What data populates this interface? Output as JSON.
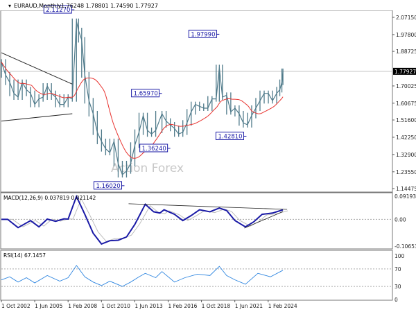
{
  "header": {
    "symbol": "EURAUD,Monthly",
    "ohlc": "1.76248 1.78801 1.74590 1.77927"
  },
  "watermark": "Action Forex",
  "colors": {
    "price": "#4f7a8a",
    "ma": "#e8322e",
    "macd": "#1a1aa6",
    "signal": "#bdbdbd",
    "rsi": "#2f86e0",
    "label_border": "#1a1aa6",
    "current_bg": "#000000"
  },
  "chart_data": [
    {
      "type": "line",
      "title": "EURAUD,Monthly",
      "ylim": [
        1.14475,
        2.0715
      ],
      "y_ticks": [
        "2.07150",
        "1.97800",
        "1.88725",
        "1.70025",
        "1.60675",
        "1.51600",
        "1.42250",
        "1.32900",
        "1.23550",
        "1.14475"
      ],
      "x_ticks": [
        "1 Oct 2002",
        "1 Jun 2005",
        "1 Feb 2008",
        "1 Oct 2010",
        "1 Jun 2013",
        "1 Feb 2016",
        "1 Oct 2018",
        "1 Jun 2021",
        "1 Feb 2024"
      ],
      "current_price": "1.77927",
      "series": [
        {
          "x": "2002-10",
          "y": 1.83
        },
        {
          "x": "2003-02",
          "y": 1.76
        },
        {
          "x": "2003-06",
          "y": 1.72
        },
        {
          "x": "2003-10",
          "y": 1.66
        },
        {
          "x": "2004-02",
          "y": 1.64
        },
        {
          "x": "2004-06",
          "y": 1.72
        },
        {
          "x": "2004-10",
          "y": 1.68
        },
        {
          "x": "2005-02",
          "y": 1.66
        },
        {
          "x": "2005-06",
          "y": 1.6
        },
        {
          "x": "2005-10",
          "y": 1.63
        },
        {
          "x": "2006-02",
          "y": 1.64
        },
        {
          "x": "2006-06",
          "y": 1.7
        },
        {
          "x": "2006-10",
          "y": 1.66
        },
        {
          "x": "2007-02",
          "y": 1.64
        },
        {
          "x": "2007-06",
          "y": 1.6
        },
        {
          "x": "2007-10",
          "y": 1.6
        },
        {
          "x": "2008-02",
          "y": 1.64
        },
        {
          "x": "2008-06",
          "y": 1.63
        },
        {
          "x": "2008-10",
          "y": 2.05
        },
        {
          "x": "2008-12",
          "y": 2.0
        },
        {
          "x": "2009-03",
          "y": 1.95
        },
        {
          "x": "2009-06",
          "y": 1.76
        },
        {
          "x": "2009-10",
          "y": 1.62
        },
        {
          "x": "2010-02",
          "y": 1.55
        },
        {
          "x": "2010-06",
          "y": 1.45
        },
        {
          "x": "2010-10",
          "y": 1.4
        },
        {
          "x": "2011-02",
          "y": 1.36
        },
        {
          "x": "2011-06",
          "y": 1.34
        },
        {
          "x": "2011-10",
          "y": 1.4
        },
        {
          "x": "2012-02",
          "y": 1.28
        },
        {
          "x": "2012-06",
          "y": 1.22
        },
        {
          "x": "2012-10",
          "y": 1.24
        },
        {
          "x": "2013-02",
          "y": 1.28
        },
        {
          "x": "2013-06",
          "y": 1.38
        },
        {
          "x": "2013-10",
          "y": 1.45
        },
        {
          "x": "2014-02",
          "y": 1.54
        },
        {
          "x": "2014-06",
          "y": 1.46
        },
        {
          "x": "2014-10",
          "y": 1.44
        },
        {
          "x": "2015-02",
          "y": 1.46
        },
        {
          "x": "2015-08",
          "y": 1.55
        },
        {
          "x": "2015-12",
          "y": 1.51
        },
        {
          "x": "2016-04",
          "y": 1.49
        },
        {
          "x": "2016-08",
          "y": 1.47
        },
        {
          "x": "2016-12",
          "y": 1.44
        },
        {
          "x": "2017-04",
          "y": 1.45
        },
        {
          "x": "2017-08",
          "y": 1.5
        },
        {
          "x": "2017-12",
          "y": 1.56
        },
        {
          "x": "2018-04",
          "y": 1.6
        },
        {
          "x": "2018-08",
          "y": 1.59
        },
        {
          "x": "2018-12",
          "y": 1.58
        },
        {
          "x": "2019-04",
          "y": 1.58
        },
        {
          "x": "2019-08",
          "y": 1.63
        },
        {
          "x": "2019-12",
          "y": 1.63
        },
        {
          "x": "2020-03",
          "y": 1.8
        },
        {
          "x": "2020-06",
          "y": 1.64
        },
        {
          "x": "2020-10",
          "y": 1.65
        },
        {
          "x": "2021-02",
          "y": 1.56
        },
        {
          "x": "2021-06",
          "y": 1.58
        },
        {
          "x": "2021-10",
          "y": 1.55
        },
        {
          "x": "2022-02",
          "y": 1.5
        },
        {
          "x": "2022-06",
          "y": 1.49
        },
        {
          "x": "2022-10",
          "y": 1.54
        },
        {
          "x": "2023-02",
          "y": 1.58
        },
        {
          "x": "2023-06",
          "y": 1.62
        },
        {
          "x": "2023-10",
          "y": 1.66
        },
        {
          "x": "2024-02",
          "y": 1.66
        },
        {
          "x": "2024-06",
          "y": 1.62
        },
        {
          "x": "2024-10",
          "y": 1.66
        },
        {
          "x": "2025-01",
          "y": 1.68
        },
        {
          "x": "2025-03",
          "y": 1.72
        },
        {
          "x": "2025-04",
          "y": 1.77927
        }
      ],
      "annotations": [
        {
          "text": "2.11270",
          "x": "2008-08",
          "y": 2.1127
        },
        {
          "text": "1.16020",
          "x": "2012-08",
          "y": 1.1602
        },
        {
          "text": "1.65970",
          "x": "2015-08",
          "y": 1.6597
        },
        {
          "text": "1.36240",
          "x": "2016-04",
          "y": 1.3624
        },
        {
          "text": "1.97990",
          "x": "2020-03",
          "y": 1.9799
        },
        {
          "text": "1.42810",
          "x": "2022-05",
          "y": 1.4281
        }
      ],
      "trendlines": [
        {
          "x1": "2002-10",
          "y1": 1.88,
          "x2": "2008-06",
          "y2": 1.71
        },
        {
          "x1": "2002-10",
          "y1": 1.51,
          "x2": "2008-06",
          "y2": 1.55
        }
      ]
    },
    {
      "type": "line",
      "title": "MACD(12,26,9) 0.037819 0.021142",
      "ylim": [
        -0.106534,
        0.091935
      ],
      "y_ticks": [
        "0.091935",
        "0.00",
        "-0.106534"
      ],
      "macd": [
        {
          "x": "2002-10",
          "y": 0.0
        },
        {
          "x": "2003-04",
          "y": 0.0
        },
        {
          "x": "2004-02",
          "y": -0.033
        },
        {
          "x": "2005-02",
          "y": -0.005
        },
        {
          "x": "2005-10",
          "y": -0.03
        },
        {
          "x": "2006-06",
          "y": 0.001
        },
        {
          "x": "2007-02",
          "y": -0.008
        },
        {
          "x": "2007-10",
          "y": 0.002
        },
        {
          "x": "2008-02",
          "y": 0.001
        },
        {
          "x": "2008-10",
          "y": 0.091
        },
        {
          "x": "2009-06",
          "y": 0.02
        },
        {
          "x": "2010-02",
          "y": -0.055
        },
        {
          "x": "2010-10",
          "y": -0.098
        },
        {
          "x": "2011-06",
          "y": -0.085
        },
        {
          "x": "2012-02",
          "y": -0.083
        },
        {
          "x": "2012-10",
          "y": -0.07
        },
        {
          "x": "2013-06",
          "y": -0.02
        },
        {
          "x": "2014-04",
          "y": 0.06
        },
        {
          "x": "2014-12",
          "y": 0.03
        },
        {
          "x": "2015-06",
          "y": 0.025
        },
        {
          "x": "2015-10",
          "y": 0.038
        },
        {
          "x": "2016-08",
          "y": 0.02
        },
        {
          "x": "2017-04",
          "y": -0.005
        },
        {
          "x": "2017-12",
          "y": 0.015
        },
        {
          "x": "2018-08",
          "y": 0.038
        },
        {
          "x": "2019-06",
          "y": 0.03
        },
        {
          "x": "2020-03",
          "y": 0.045
        },
        {
          "x": "2020-10",
          "y": 0.035
        },
        {
          "x": "2021-06",
          "y": -0.005
        },
        {
          "x": "2022-04",
          "y": -0.03
        },
        {
          "x": "2022-12",
          "y": -0.01
        },
        {
          "x": "2023-08",
          "y": 0.02
        },
        {
          "x": "2024-06",
          "y": 0.025
        },
        {
          "x": "2025-04",
          "y": 0.0378
        }
      ],
      "trendlines": [
        {
          "x1": "2012-12",
          "y1": 0.062,
          "x2": "2025-08",
          "y2": 0.0396
        },
        {
          "x1": "2022-03",
          "y1": -0.035,
          "x2": "2025-04",
          "y2": 0.031
        }
      ]
    },
    {
      "type": "line",
      "title": "RSI(14) 67.1457",
      "ylim": [
        0,
        100
      ],
      "y_ticks": [
        "100",
        "70",
        "30",
        "0"
      ],
      "values": [
        {
          "x": "2002-10",
          "y": 45
        },
        {
          "x": "2003-06",
          "y": 52
        },
        {
          "x": "2004-02",
          "y": 40
        },
        {
          "x": "2004-10",
          "y": 50
        },
        {
          "x": "2005-06",
          "y": 38
        },
        {
          "x": "2006-06",
          "y": 55
        },
        {
          "x": "2007-06",
          "y": 42
        },
        {
          "x": "2008-02",
          "y": 50
        },
        {
          "x": "2008-10",
          "y": 78
        },
        {
          "x": "2009-06",
          "y": 52
        },
        {
          "x": "2010-02",
          "y": 40
        },
        {
          "x": "2010-10",
          "y": 32
        },
        {
          "x": "2011-06",
          "y": 42
        },
        {
          "x": "2012-06",
          "y": 30
        },
        {
          "x": "2013-02",
          "y": 40
        },
        {
          "x": "2013-10",
          "y": 52
        },
        {
          "x": "2014-04",
          "y": 60
        },
        {
          "x": "2015-02",
          "y": 50
        },
        {
          "x": "2015-08",
          "y": 64
        },
        {
          "x": "2016-08",
          "y": 40
        },
        {
          "x": "2017-06",
          "y": 50
        },
        {
          "x": "2018-06",
          "y": 58
        },
        {
          "x": "2019-06",
          "y": 55
        },
        {
          "x": "2020-03",
          "y": 76
        },
        {
          "x": "2020-10",
          "y": 55
        },
        {
          "x": "2021-06",
          "y": 45
        },
        {
          "x": "2022-04",
          "y": 35
        },
        {
          "x": "2023-04",
          "y": 60
        },
        {
          "x": "2024-04",
          "y": 52
        },
        {
          "x": "2025-04",
          "y": 67
        }
      ]
    }
  ]
}
